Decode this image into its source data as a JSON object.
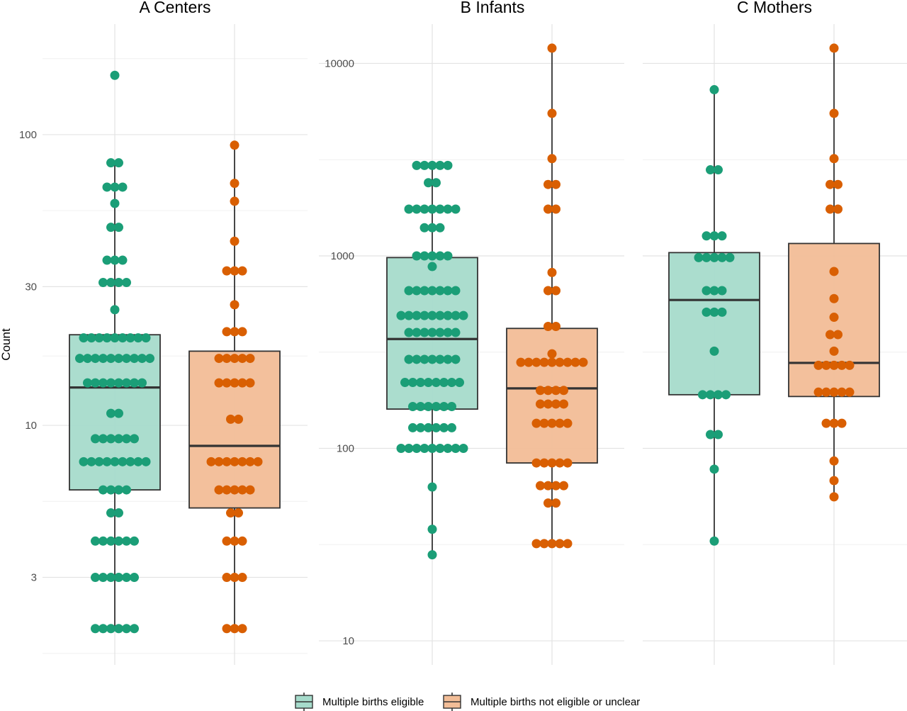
{
  "chart_data": {
    "type": "box",
    "y_scale": "log10",
    "grid": true,
    "legend_position": "bottom",
    "ylabel": "Count",
    "groups": [
      {
        "key": "eligible",
        "label": "Multiple births eligible",
        "fill": "#a6dbcb",
        "point": "#1b9e77"
      },
      {
        "key": "not_eligible",
        "label": "Multiple births not eligible or unclear",
        "fill": "#f2bd97",
        "point": "#d95f02"
      }
    ],
    "panels": [
      {
        "title": "A  Centers",
        "ylim": [
          1.5,
          240
        ],
        "yticks": [
          3,
          10,
          30,
          100
        ],
        "ytick_labels": [
          "3",
          "10",
          "30",
          "100"
        ],
        "boxes": [
          {
            "group": "eligible",
            "q1": 6,
            "median": 13.5,
            "q3": 20.5,
            "whisker_low": 2,
            "whisker_high": 80
          },
          {
            "group": "not_eligible",
            "q1": 5.2,
            "median": 8.5,
            "q3": 18,
            "whisker_low": 2,
            "whisker_high": 92
          }
        ],
        "points": [
          {
            "group": "eligible",
            "value": 160,
            "count": 1
          },
          {
            "group": "eligible",
            "value": 80,
            "count": 2
          },
          {
            "group": "eligible",
            "value": 66,
            "count": 3
          },
          {
            "group": "eligible",
            "value": 58,
            "count": 1
          },
          {
            "group": "eligible",
            "value": 48,
            "count": 2
          },
          {
            "group": "eligible",
            "value": 37,
            "count": 3
          },
          {
            "group": "eligible",
            "value": 31,
            "count": 4
          },
          {
            "group": "eligible",
            "value": 25,
            "count": 1
          },
          {
            "group": "eligible",
            "value": 20,
            "count": 9
          },
          {
            "group": "eligible",
            "value": 17,
            "count": 10
          },
          {
            "group": "eligible",
            "value": 14,
            "count": 8
          },
          {
            "group": "eligible",
            "value": 11,
            "count": 2
          },
          {
            "group": "eligible",
            "value": 9,
            "count": 6
          },
          {
            "group": "eligible",
            "value": 7.5,
            "count": 9
          },
          {
            "group": "eligible",
            "value": 6,
            "count": 4
          },
          {
            "group": "eligible",
            "value": 5,
            "count": 2
          },
          {
            "group": "eligible",
            "value": 4,
            "count": 6
          },
          {
            "group": "eligible",
            "value": 3,
            "count": 6
          },
          {
            "group": "eligible",
            "value": 2,
            "count": 6
          },
          {
            "group": "not_eligible",
            "value": 92,
            "count": 1
          },
          {
            "group": "not_eligible",
            "value": 68,
            "count": 1
          },
          {
            "group": "not_eligible",
            "value": 59,
            "count": 1
          },
          {
            "group": "not_eligible",
            "value": 43,
            "count": 1
          },
          {
            "group": "not_eligible",
            "value": 34,
            "count": 3
          },
          {
            "group": "not_eligible",
            "value": 26,
            "count": 1
          },
          {
            "group": "not_eligible",
            "value": 21,
            "count": 3
          },
          {
            "group": "not_eligible",
            "value": 17,
            "count": 5
          },
          {
            "group": "not_eligible",
            "value": 14,
            "count": 5
          },
          {
            "group": "not_eligible",
            "value": 10.5,
            "count": 2
          },
          {
            "group": "not_eligible",
            "value": 7.5,
            "count": 7
          },
          {
            "group": "not_eligible",
            "value": 6,
            "count": 5
          },
          {
            "group": "not_eligible",
            "value": 5,
            "count": 2
          },
          {
            "group": "not_eligible",
            "value": 4,
            "count": 3
          },
          {
            "group": "not_eligible",
            "value": 3,
            "count": 3
          },
          {
            "group": "not_eligible",
            "value": 2,
            "count": 3
          }
        ]
      },
      {
        "title": "B  Infants",
        "ylim": [
          7.5,
          16000
        ],
        "yticks": [
          10,
          100,
          1000,
          10000
        ],
        "ytick_labels": [
          "10",
          "100",
          "1000",
          "10000"
        ],
        "boxes": [
          {
            "group": "eligible",
            "q1": 160,
            "median": 370,
            "q3": 980,
            "whisker_low": 28,
            "whisker_high": 2950
          },
          {
            "group": "not_eligible",
            "q1": 84,
            "median": 205,
            "q3": 420,
            "whisker_low": 32,
            "whisker_high": 12000
          }
        ],
        "points": [
          {
            "group": "eligible",
            "value": 2950,
            "count": 5
          },
          {
            "group": "eligible",
            "value": 2400,
            "count": 2
          },
          {
            "group": "eligible",
            "value": 1750,
            "count": 7
          },
          {
            "group": "eligible",
            "value": 1400,
            "count": 3
          },
          {
            "group": "eligible",
            "value": 1000,
            "count": 5
          },
          {
            "group": "eligible",
            "value": 880,
            "count": 1
          },
          {
            "group": "eligible",
            "value": 660,
            "count": 7
          },
          {
            "group": "eligible",
            "value": 490,
            "count": 9
          },
          {
            "group": "eligible",
            "value": 400,
            "count": 7
          },
          {
            "group": "eligible",
            "value": 290,
            "count": 7
          },
          {
            "group": "eligible",
            "value": 220,
            "count": 8
          },
          {
            "group": "eligible",
            "value": 165,
            "count": 6
          },
          {
            "group": "eligible",
            "value": 128,
            "count": 6
          },
          {
            "group": "eligible",
            "value": 100,
            "count": 9
          },
          {
            "group": "eligible",
            "value": 63,
            "count": 1
          },
          {
            "group": "eligible",
            "value": 38,
            "count": 1
          },
          {
            "group": "eligible",
            "value": 28,
            "count": 1
          },
          {
            "group": "not_eligible",
            "value": 12000,
            "count": 1
          },
          {
            "group": "not_eligible",
            "value": 5500,
            "count": 1
          },
          {
            "group": "not_eligible",
            "value": 3200,
            "count": 1
          },
          {
            "group": "not_eligible",
            "value": 2350,
            "count": 2
          },
          {
            "group": "not_eligible",
            "value": 1750,
            "count": 2
          },
          {
            "group": "not_eligible",
            "value": 820,
            "count": 1
          },
          {
            "group": "not_eligible",
            "value": 660,
            "count": 2
          },
          {
            "group": "not_eligible",
            "value": 430,
            "count": 2
          },
          {
            "group": "not_eligible",
            "value": 310,
            "count": 1
          },
          {
            "group": "not_eligible",
            "value": 280,
            "count": 9
          },
          {
            "group": "not_eligible",
            "value": 200,
            "count": 4
          },
          {
            "group": "not_eligible",
            "value": 170,
            "count": 4
          },
          {
            "group": "not_eligible",
            "value": 135,
            "count": 5
          },
          {
            "group": "not_eligible",
            "value": 84,
            "count": 5
          },
          {
            "group": "not_eligible",
            "value": 64,
            "count": 4
          },
          {
            "group": "not_eligible",
            "value": 52,
            "count": 2
          },
          {
            "group": "not_eligible",
            "value": 32,
            "count": 5
          }
        ]
      },
      {
        "title": "C  Mothers",
        "ylim": [
          7.5,
          16000
        ],
        "yticks": [
          10,
          100,
          1000,
          10000
        ],
        "ytick_labels": [],
        "boxes": [
          {
            "group": "eligible",
            "q1": 190,
            "median": 590,
            "q3": 1040,
            "whisker_low": 33,
            "whisker_high": 7300
          },
          {
            "group": "not_eligible",
            "q1": 186,
            "median": 278,
            "q3": 1160,
            "whisker_low": 56,
            "whisker_high": 12000
          }
        ],
        "points": [
          {
            "group": "eligible",
            "value": 7300,
            "count": 1
          },
          {
            "group": "eligible",
            "value": 2800,
            "count": 2
          },
          {
            "group": "eligible",
            "value": 1270,
            "count": 3
          },
          {
            "group": "eligible",
            "value": 980,
            "count": 5
          },
          {
            "group": "eligible",
            "value": 660,
            "count": 3
          },
          {
            "group": "eligible",
            "value": 510,
            "count": 3
          },
          {
            "group": "eligible",
            "value": 320,
            "count": 1
          },
          {
            "group": "eligible",
            "value": 190,
            "count": 4
          },
          {
            "group": "eligible",
            "value": 118,
            "count": 2
          },
          {
            "group": "eligible",
            "value": 78,
            "count": 1
          },
          {
            "group": "eligible",
            "value": 33,
            "count": 1
          },
          {
            "group": "not_eligible",
            "value": 12000,
            "count": 1
          },
          {
            "group": "not_eligible",
            "value": 5500,
            "count": 1
          },
          {
            "group": "not_eligible",
            "value": 3200,
            "count": 1
          },
          {
            "group": "not_eligible",
            "value": 2350,
            "count": 2
          },
          {
            "group": "not_eligible",
            "value": 1750,
            "count": 2
          },
          {
            "group": "not_eligible",
            "value": 830,
            "count": 1
          },
          {
            "group": "not_eligible",
            "value": 600,
            "count": 1
          },
          {
            "group": "not_eligible",
            "value": 480,
            "count": 1
          },
          {
            "group": "not_eligible",
            "value": 390,
            "count": 2
          },
          {
            "group": "not_eligible",
            "value": 320,
            "count": 1
          },
          {
            "group": "not_eligible",
            "value": 270,
            "count": 5
          },
          {
            "group": "not_eligible",
            "value": 196,
            "count": 5
          },
          {
            "group": "not_eligible",
            "value": 135,
            "count": 3
          },
          {
            "group": "not_eligible",
            "value": 86,
            "count": 1
          },
          {
            "group": "not_eligible",
            "value": 68,
            "count": 1
          },
          {
            "group": "not_eligible",
            "value": 56,
            "count": 1
          }
        ]
      }
    ]
  }
}
